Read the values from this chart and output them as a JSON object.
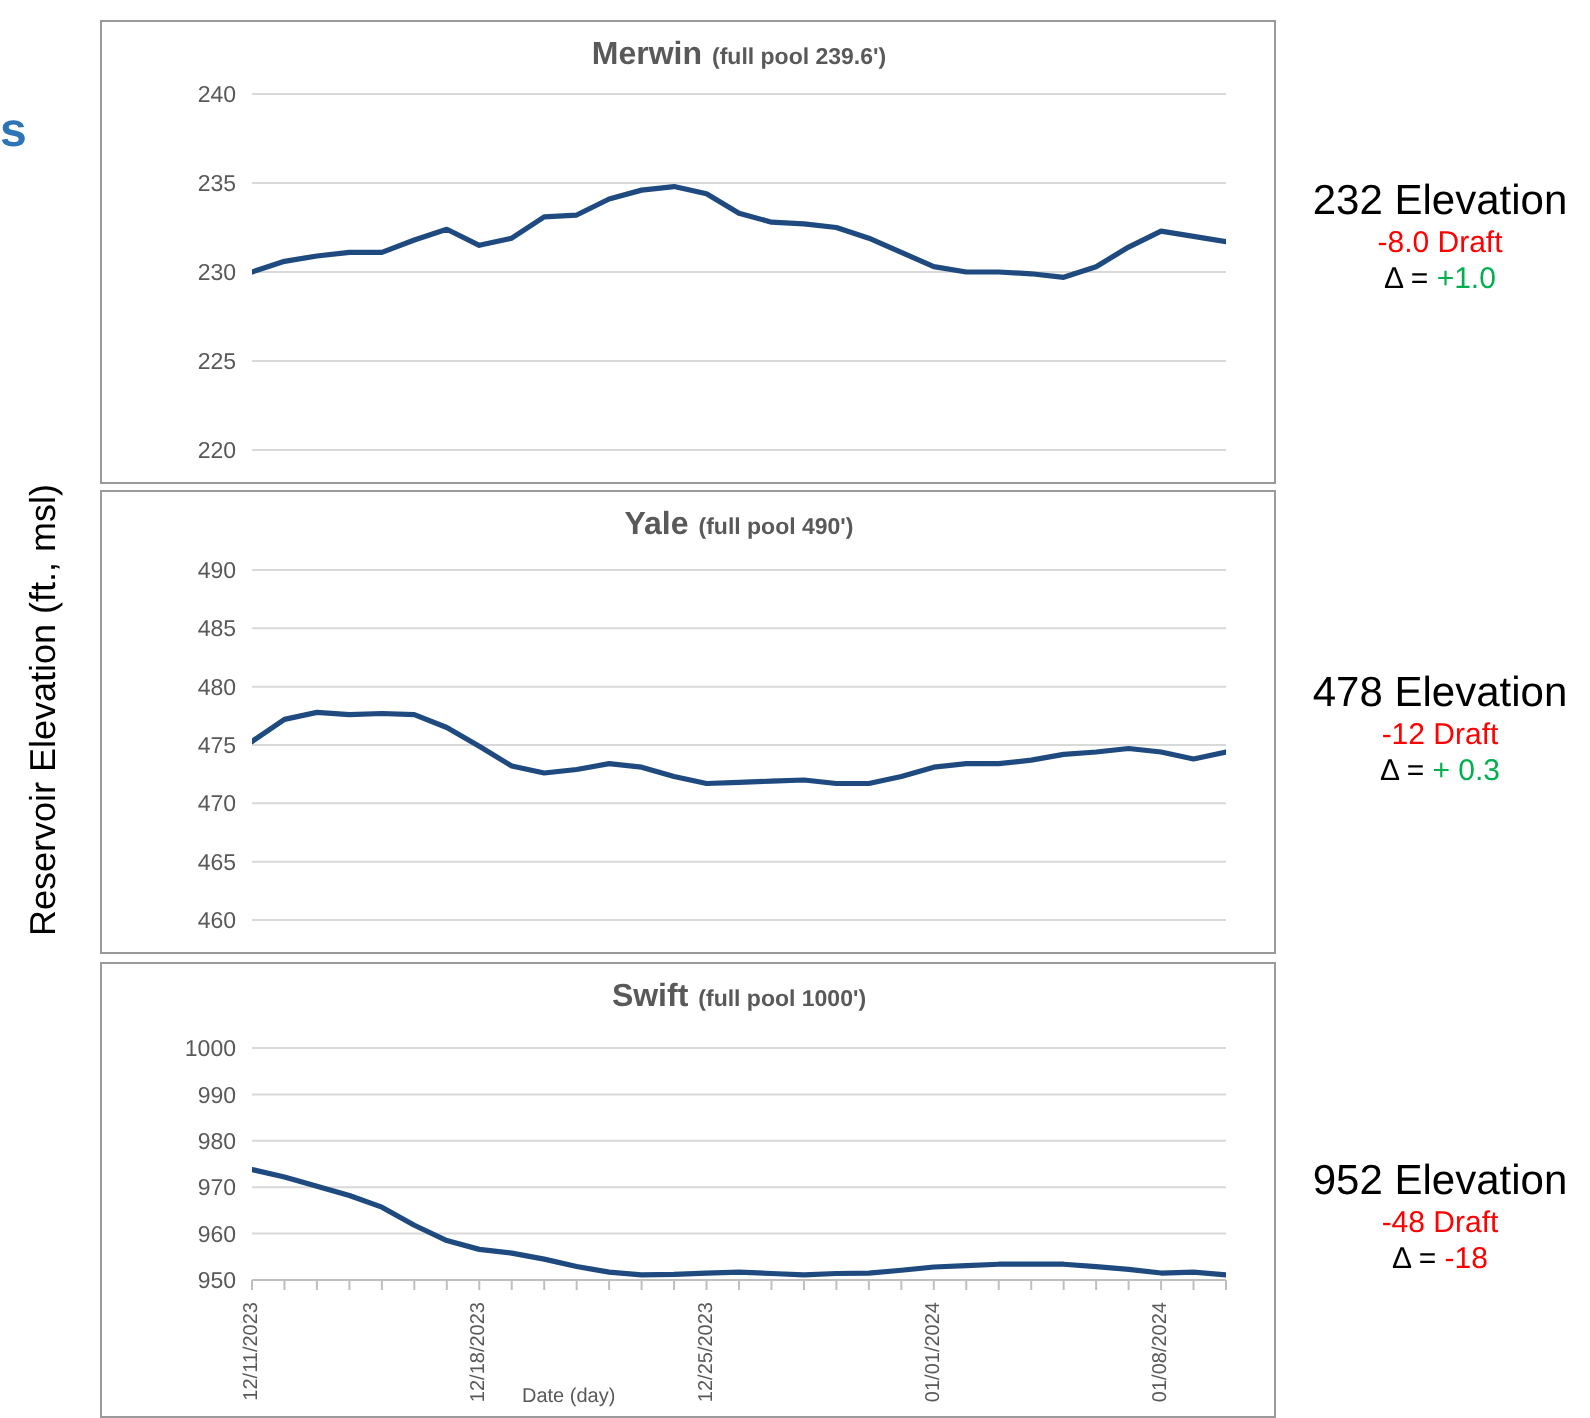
{
  "chart_data": [
    {
      "type": "line",
      "title": "Merwin",
      "subtitle": "(full pool 239.6')",
      "x": [
        "2023-12-11",
        "2023-12-12",
        "2023-12-13",
        "2023-12-14",
        "2023-12-15",
        "2023-12-16",
        "2023-12-17",
        "2023-12-18",
        "2023-12-19",
        "2023-12-20",
        "2023-12-21",
        "2023-12-22",
        "2023-12-23",
        "2023-12-24",
        "2023-12-25",
        "2023-12-26",
        "2023-12-27",
        "2023-12-28",
        "2023-12-29",
        "2023-12-30",
        "2023-12-31",
        "2024-01-01",
        "2024-01-02",
        "2024-01-03",
        "2024-01-04",
        "2024-01-05",
        "2024-01-06",
        "2024-01-07",
        "2024-01-08",
        "2024-01-09",
        "2024-01-10"
      ],
      "series": [
        {
          "color": "#1f4a7f",
          "values": [
            230.0,
            230.6,
            230.9,
            231.1,
            231.1,
            231.8,
            232.4,
            231.5,
            231.9,
            233.1,
            233.2,
            234.1,
            234.6,
            234.8,
            234.4,
            233.3,
            232.8,
            232.7,
            232.5,
            231.9,
            231.1,
            230.3,
            230.0,
            230.0,
            229.9,
            229.7,
            230.3,
            231.4,
            232.3,
            232.0,
            231.7
          ]
        }
      ],
      "xlim": [
        "2023-12-11",
        "2024-01-10"
      ],
      "ylim": [
        220,
        240
      ],
      "yticks": [
        220,
        225,
        230,
        235,
        240
      ],
      "grid": "y",
      "tick_labels": "y",
      "annotations": [
        "232 Elevation",
        "-8.0 Draft",
        "Δ =",
        "+1.0",
        "s"
      ]
    },
    {
      "type": "line",
      "title": "Yale",
      "subtitle": "(full pool 490')",
      "ylabel": "Reservoir Elevation (ft., msl)",
      "x": [
        "2023-12-11",
        "2023-12-12",
        "2023-12-13",
        "2023-12-14",
        "2023-12-15",
        "2023-12-16",
        "2023-12-17",
        "2023-12-18",
        "2023-12-19",
        "2023-12-20",
        "2023-12-21",
        "2023-12-22",
        "2023-12-23",
        "2023-12-24",
        "2023-12-25",
        "2023-12-26",
        "2023-12-27",
        "2023-12-28",
        "2023-12-29",
        "2023-12-30",
        "2023-12-31",
        "2024-01-01",
        "2024-01-02",
        "2024-01-03",
        "2024-01-04",
        "2024-01-05",
        "2024-01-06",
        "2024-01-07",
        "2024-01-08",
        "2024-01-09",
        "2024-01-10"
      ],
      "series": [
        {
          "color": "#1f4a7f",
          "values": [
            475.3,
            477.2,
            477.8,
            477.6,
            477.7,
            477.6,
            476.5,
            474.9,
            473.2,
            472.6,
            472.9,
            473.4,
            473.1,
            472.3,
            471.7,
            471.8,
            471.9,
            472.0,
            471.7,
            471.7,
            472.3,
            473.1,
            473.4,
            473.4,
            473.7,
            474.2,
            474.4,
            474.7,
            474.4,
            473.8,
            474.4
          ]
        }
      ],
      "xlim": [
        "2023-12-11",
        "2024-01-10"
      ],
      "ylim": [
        460,
        490
      ],
      "yticks": [
        460,
        465,
        470,
        475,
        480,
        485,
        490
      ],
      "grid": "y",
      "tick_labels": "y",
      "annotations": [
        "478 Elevation",
        "-12 Draft",
        "Δ =",
        "+ 0.3"
      ]
    },
    {
      "type": "line",
      "title": "Swift",
      "subtitle": "(full pool 1000')",
      "xlabel": "Date (day)",
      "x": [
        "2023-12-11",
        "2023-12-12",
        "2023-12-13",
        "2023-12-14",
        "2023-12-15",
        "2023-12-16",
        "2023-12-17",
        "2023-12-18",
        "2023-12-19",
        "2023-12-20",
        "2023-12-21",
        "2023-12-22",
        "2023-12-23",
        "2023-12-24",
        "2023-12-25",
        "2023-12-26",
        "2023-12-27",
        "2023-12-28",
        "2023-12-29",
        "2023-12-30",
        "2023-12-31",
        "2024-01-01",
        "2024-01-02",
        "2024-01-03",
        "2024-01-04",
        "2024-01-05",
        "2024-01-06",
        "2024-01-07",
        "2024-01-08",
        "2024-01-09",
        "2024-01-10"
      ],
      "series": [
        {
          "color": "#1f4a7f",
          "values": [
            973.8,
            972.2,
            970.2,
            968.2,
            965.7,
            961.8,
            958.5,
            956.6,
            955.8,
            954.5,
            952.9,
            951.7,
            951.1,
            951.2,
            951.5,
            951.7,
            951.4,
            951.1,
            951.4,
            951.5,
            952.1,
            952.8,
            953.1,
            953.4,
            953.4,
            953.4,
            952.9,
            952.3,
            951.5,
            951.7,
            951.1
          ]
        }
      ],
      "xlim": [
        "2023-12-11",
        "2024-01-10"
      ],
      "ylim": [
        950,
        1000
      ],
      "yticks": [
        950,
        960,
        970,
        980,
        990,
        1000
      ],
      "grid": "y",
      "xticks": [
        {
          "value": "2023-12-11",
          "label": "12/11/2023"
        },
        {
          "value": "2023-12-12",
          "label": null
        },
        {
          "value": "2023-12-13",
          "label": null
        },
        {
          "value": "2023-12-14",
          "label": null
        },
        {
          "value": "2023-12-15",
          "label": null
        },
        {
          "value": "2023-12-16",
          "label": null
        },
        {
          "value": "2023-12-17",
          "label": null
        },
        {
          "value": "2023-12-18",
          "label": "12/18/2023"
        },
        {
          "value": "2023-12-19",
          "label": null
        },
        {
          "value": "2023-12-20",
          "label": null
        },
        {
          "value": "2023-12-21",
          "label": null
        },
        {
          "value": "2023-12-22",
          "label": null
        },
        {
          "value": "2023-12-23",
          "label": null
        },
        {
          "value": "2023-12-24",
          "label": null
        },
        {
          "value": "2023-12-25",
          "label": "12/25/2023"
        },
        {
          "value": "2023-12-26",
          "label": null
        },
        {
          "value": "2023-12-27",
          "label": null
        },
        {
          "value": "2023-12-28",
          "label": null
        },
        {
          "value": "2023-12-29",
          "label": null
        },
        {
          "value": "2023-12-30",
          "label": null
        },
        {
          "value": "2023-12-31",
          "label": null
        },
        {
          "value": "2024-01-01",
          "label": "01/01/2024"
        },
        {
          "value": "2024-01-02",
          "label": null
        },
        {
          "value": "2024-01-03",
          "label": null
        },
        {
          "value": "2024-01-04",
          "label": null
        },
        {
          "value": "2024-01-05",
          "label": null
        },
        {
          "value": "2024-01-06",
          "label": null
        },
        {
          "value": "2024-01-07",
          "label": null
        },
        {
          "value": "2024-01-08",
          "label": "01/08/2024"
        },
        {
          "value": "2024-01-09",
          "label": null
        },
        {
          "value": "2024-01-10",
          "label": null
        }
      ],
      "annotations": [
        "952 Elevation",
        "-48 Draft",
        "Δ =",
        "-18"
      ]
    }
  ]
}
